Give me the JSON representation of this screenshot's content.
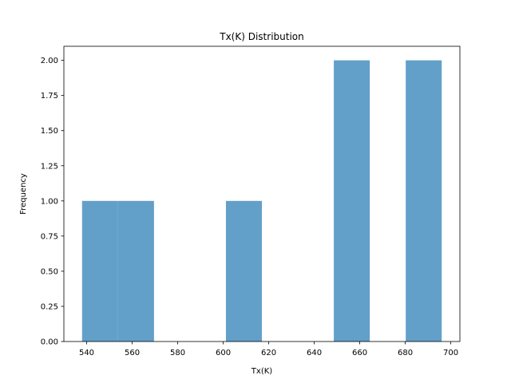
{
  "chart_data": {
    "type": "bar",
    "title": "Tx(K) Distribution",
    "xlabel": "Tx(K)",
    "ylabel": "Frequency",
    "xlim": [
      530.0,
      704.0
    ],
    "ylim": [
      0,
      2.1
    ],
    "x_ticks": [
      "540",
      "560",
      "580",
      "600",
      "620",
      "640",
      "660",
      "680",
      "700"
    ],
    "y_ticks": [
      "0.00",
      "0.25",
      "0.50",
      "0.75",
      "1.00",
      "1.25",
      "1.50",
      "1.75",
      "2.00"
    ],
    "bins": [
      {
        "start": 538.0,
        "end": 553.8,
        "value": 1
      },
      {
        "start": 553.8,
        "end": 569.6,
        "value": 1
      },
      {
        "start": 569.6,
        "end": 585.4,
        "value": 0
      },
      {
        "start": 585.4,
        "end": 601.2,
        "value": 0
      },
      {
        "start": 601.2,
        "end": 617.0,
        "value": 1
      },
      {
        "start": 617.0,
        "end": 632.8,
        "value": 0
      },
      {
        "start": 632.8,
        "end": 648.6,
        "value": 0
      },
      {
        "start": 648.6,
        "end": 664.4,
        "value": 2
      },
      {
        "start": 664.4,
        "end": 680.2,
        "value": 0
      },
      {
        "start": 680.2,
        "end": 696.0,
        "value": 2
      }
    ],
    "bar_color": "#1f77b4",
    "bar_opacity": 0.7,
    "grid": false,
    "legend": "none"
  }
}
